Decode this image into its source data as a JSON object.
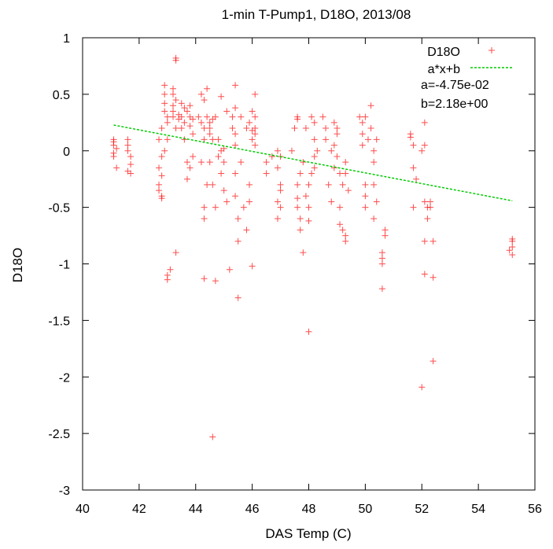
{
  "chart_data": {
    "type": "scatter",
    "title": "1-min T-Pump1, D18O, 2013/08",
    "xlabel": "DAS Temp (C)",
    "ylabel": "D18O",
    "xlim": [
      40,
      56
    ],
    "ylim": [
      -3,
      1
    ],
    "xticks": [
      40,
      42,
      44,
      46,
      48,
      50,
      52,
      54,
      56
    ],
    "yticks": [
      1,
      0.5,
      0,
      -0.5,
      -1,
      -1.5,
      -2,
      -2.5,
      -3
    ],
    "grid": false,
    "legend_position": "top-right",
    "series": [
      {
        "name": "D18O",
        "marker": "+",
        "color": "#ff0000",
        "points": [
          [
            41.1,
            0.08
          ],
          [
            41.1,
            0.05
          ],
          [
            41.1,
            -0.02
          ],
          [
            41.1,
            -0.05
          ],
          [
            41.2,
            -0.15
          ],
          [
            41.1,
            0.1
          ],
          [
            41.2,
            0.02
          ],
          [
            41.6,
            0.1
          ],
          [
            41.6,
            0.05
          ],
          [
            41.7,
            -0.05
          ],
          [
            41.7,
            -0.12
          ],
          [
            41.6,
            -0.18
          ],
          [
            41.7,
            -0.2
          ],
          [
            41.6,
            0.0
          ],
          [
            42.7,
            -0.15
          ],
          [
            42.7,
            -0.3
          ],
          [
            42.8,
            -0.4
          ],
          [
            42.8,
            -0.05
          ],
          [
            42.7,
            0.1
          ],
          [
            42.8,
            -0.22
          ],
          [
            42.7,
            -0.35
          ],
          [
            42.9,
            0.0
          ],
          [
            42.8,
            0.2
          ],
          [
            42.8,
            -0.42
          ],
          [
            42.9,
            0.35
          ],
          [
            42.9,
            0.5
          ],
          [
            42.9,
            0.58
          ],
          [
            43.0,
            0.1
          ],
          [
            43.0,
            0.25
          ],
          [
            43.0,
            0.3
          ],
          [
            43.0,
            -1.1
          ],
          [
            43.0,
            -1.14
          ],
          [
            42.9,
            0.42
          ],
          [
            43.2,
            0.4
          ],
          [
            43.2,
            0.35
          ],
          [
            43.2,
            0.5
          ],
          [
            43.2,
            0.3
          ],
          [
            43.3,
            0.45
          ],
          [
            43.3,
            0.2
          ],
          [
            43.3,
            0.8
          ],
          [
            43.3,
            0.82
          ],
          [
            43.2,
            0.55
          ],
          [
            43.3,
            -0.9
          ],
          [
            43.1,
            -1.05
          ],
          [
            43.4,
            0.32
          ],
          [
            43.5,
            0.3
          ],
          [
            43.6,
            0.25
          ],
          [
            43.6,
            0.38
          ],
          [
            43.5,
            0.42
          ],
          [
            43.4,
            0.28
          ],
          [
            43.6,
            0.1
          ],
          [
            43.5,
            0.2
          ],
          [
            43.7,
            0.35
          ],
          [
            43.8,
            0.4
          ],
          [
            43.8,
            0.3
          ],
          [
            43.8,
            0.22
          ],
          [
            43.9,
            0.15
          ],
          [
            43.7,
            -0.1
          ],
          [
            43.9,
            -0.05
          ],
          [
            43.8,
            -0.15
          ],
          [
            43.7,
            -0.25
          ],
          [
            43.9,
            0.28
          ],
          [
            44.1,
            0.3
          ],
          [
            44.2,
            0.5
          ],
          [
            44.3,
            0.45
          ],
          [
            44.2,
            0.25
          ],
          [
            44.3,
            0.2
          ],
          [
            44.3,
            0.1
          ],
          [
            44.2,
            -0.1
          ],
          [
            44.4,
            -0.3
          ],
          [
            44.3,
            -0.5
          ],
          [
            44.3,
            -0.6
          ],
          [
            44.3,
            -1.13
          ],
          [
            44.4,
            0.55
          ],
          [
            44.4,
            0.3
          ],
          [
            44.5,
            0.2
          ],
          [
            44.5,
            0.25
          ],
          [
            44.5,
            0.15
          ],
          [
            44.6,
            0.28
          ],
          [
            44.7,
            0.3
          ],
          [
            44.6,
            0.1
          ],
          [
            44.5,
            -0.1
          ],
          [
            44.6,
            -0.3
          ],
          [
            44.7,
            -0.5
          ],
          [
            44.7,
            -1.15
          ],
          [
            44.6,
            -2.53
          ],
          [
            44.8,
            0.1
          ],
          [
            44.9,
            0.0
          ],
          [
            44.8,
            -0.05
          ],
          [
            44.9,
            -0.2
          ],
          [
            45.0,
            -0.1
          ],
          [
            45.0,
            0.02
          ],
          [
            45.0,
            -0.35
          ],
          [
            45.1,
            -0.45
          ],
          [
            45.1,
            0.35
          ],
          [
            45.2,
            -1.05
          ],
          [
            44.9,
            0.48
          ],
          [
            45.3,
            0.2
          ],
          [
            45.3,
            0.3
          ],
          [
            45.4,
            0.38
          ],
          [
            45.4,
            0.15
          ],
          [
            45.4,
            0.05
          ],
          [
            45.4,
            -0.2
          ],
          [
            45.4,
            -0.4
          ],
          [
            45.5,
            -0.6
          ],
          [
            45.5,
            -0.8
          ],
          [
            45.5,
            -1.3
          ],
          [
            45.4,
            0.58
          ],
          [
            45.6,
            0.3
          ],
          [
            45.6,
            -0.1
          ],
          [
            45.7,
            -0.5
          ],
          [
            45.8,
            0.2
          ],
          [
            45.9,
            0.25
          ],
          [
            45.9,
            -0.3
          ],
          [
            45.9,
            -0.45
          ],
          [
            46.0,
            -1.02
          ],
          [
            45.8,
            -0.7
          ],
          [
            46.0,
            0.1
          ],
          [
            46.1,
            0.15
          ],
          [
            46.1,
            0.3
          ],
          [
            46.1,
            0.5
          ],
          [
            46.0,
            0.18
          ],
          [
            46.1,
            0.05
          ],
          [
            46.0,
            0.35
          ],
          [
            46.1,
            0.2
          ],
          [
            46.5,
            -0.1
          ],
          [
            46.5,
            -0.2
          ],
          [
            46.7,
            -0.05
          ],
          [
            46.9,
            0.0
          ],
          [
            47.0,
            -0.05
          ],
          [
            46.9,
            -0.15
          ],
          [
            47.0,
            -0.3
          ],
          [
            47.0,
            -0.35
          ],
          [
            46.9,
            -0.45
          ],
          [
            47.0,
            -0.5
          ],
          [
            46.9,
            -0.6
          ],
          [
            47.4,
            0.0
          ],
          [
            47.5,
            0.2
          ],
          [
            47.6,
            0.3
          ],
          [
            47.6,
            0.28
          ],
          [
            47.6,
            -0.3
          ],
          [
            47.6,
            -0.5
          ],
          [
            47.7,
            -0.6
          ],
          [
            47.7,
            -0.7
          ],
          [
            47.7,
            -0.2
          ],
          [
            47.6,
            -0.42
          ],
          [
            47.8,
            -0.1
          ],
          [
            47.9,
            0.2
          ],
          [
            47.9,
            -0.4
          ],
          [
            48.0,
            -0.5
          ],
          [
            48.0,
            -0.62
          ],
          [
            48.0,
            -0.3
          ],
          [
            48.0,
            -1.6
          ],
          [
            47.8,
            -0.9
          ],
          [
            48.1,
            0.3
          ],
          [
            48.2,
            0.25
          ],
          [
            48.2,
            0.1
          ],
          [
            48.2,
            -0.05
          ],
          [
            48.2,
            -0.15
          ],
          [
            48.3,
            0.0
          ],
          [
            48.1,
            -0.2
          ],
          [
            48.5,
            0.3
          ],
          [
            48.6,
            0.2
          ],
          [
            48.6,
            0.1
          ],
          [
            48.7,
            -0.3
          ],
          [
            48.8,
            0.0
          ],
          [
            48.9,
            0.25
          ],
          [
            48.9,
            0.05
          ],
          [
            48.9,
            -0.15
          ],
          [
            48.8,
            -0.45
          ],
          [
            49.0,
            0.15
          ],
          [
            49.0,
            -0.05
          ],
          [
            49.1,
            -0.2
          ],
          [
            49.1,
            -0.5
          ],
          [
            49.1,
            -0.65
          ],
          [
            49.2,
            -0.7
          ],
          [
            49.0,
            0.2
          ],
          [
            49.3,
            -0.1
          ],
          [
            49.3,
            -0.2
          ],
          [
            49.4,
            -0.35
          ],
          [
            49.3,
            -0.75
          ],
          [
            49.3,
            -0.8
          ],
          [
            49.2,
            -0.3
          ],
          [
            49.8,
            0.3
          ],
          [
            49.9,
            0.15
          ],
          [
            49.9,
            0.05
          ],
          [
            50.0,
            0.3
          ],
          [
            50.0,
            -0.3
          ],
          [
            50.0,
            -0.4
          ],
          [
            50.0,
            -0.5
          ],
          [
            49.9,
            0.25
          ],
          [
            50.1,
            0.1
          ],
          [
            50.2,
            0.2
          ],
          [
            50.2,
            0.4
          ],
          [
            50.3,
            -0.3
          ],
          [
            50.3,
            -0.1
          ],
          [
            50.4,
            0.1
          ],
          [
            50.3,
            0.0
          ],
          [
            50.3,
            -0.6
          ],
          [
            50.4,
            -0.45
          ],
          [
            50.6,
            -0.9
          ],
          [
            50.6,
            -0.95
          ],
          [
            50.7,
            -0.7
          ],
          [
            50.6,
            -1.22
          ],
          [
            50.7,
            -0.75
          ],
          [
            50.6,
            -1.0
          ],
          [
            51.6,
            0.15
          ],
          [
            51.6,
            0.12
          ],
          [
            51.7,
            0.05
          ],
          [
            51.7,
            -0.15
          ],
          [
            51.8,
            -0.25
          ],
          [
            51.7,
            -0.5
          ],
          [
            52.0,
            0.0
          ],
          [
            52.1,
            0.05
          ],
          [
            52.1,
            0.25
          ],
          [
            52.1,
            -0.45
          ],
          [
            52.2,
            -0.5
          ],
          [
            52.2,
            -0.6
          ],
          [
            52.1,
            -0.8
          ],
          [
            52.1,
            -1.09
          ],
          [
            52.0,
            -2.09
          ],
          [
            52.3,
            -0.5
          ],
          [
            52.3,
            -0.45
          ],
          [
            52.4,
            -0.8
          ],
          [
            52.4,
            -1.12
          ],
          [
            52.4,
            -1.86
          ],
          [
            55.2,
            -0.8
          ],
          [
            55.2,
            -0.85
          ],
          [
            55.2,
            -0.92
          ],
          [
            55.2,
            -0.78
          ],
          [
            55.1,
            -0.88
          ]
        ]
      },
      {
        "name": "a*x+b",
        "color": "#00cc00",
        "line_style": "dashed",
        "slope": -0.0475,
        "intercept": 2.18,
        "x_range": [
          41.1,
          55.2
        ]
      }
    ],
    "annotations": {
      "a_text": "a=-4.75e-02",
      "b_text": "b=2.18e+00"
    }
  }
}
